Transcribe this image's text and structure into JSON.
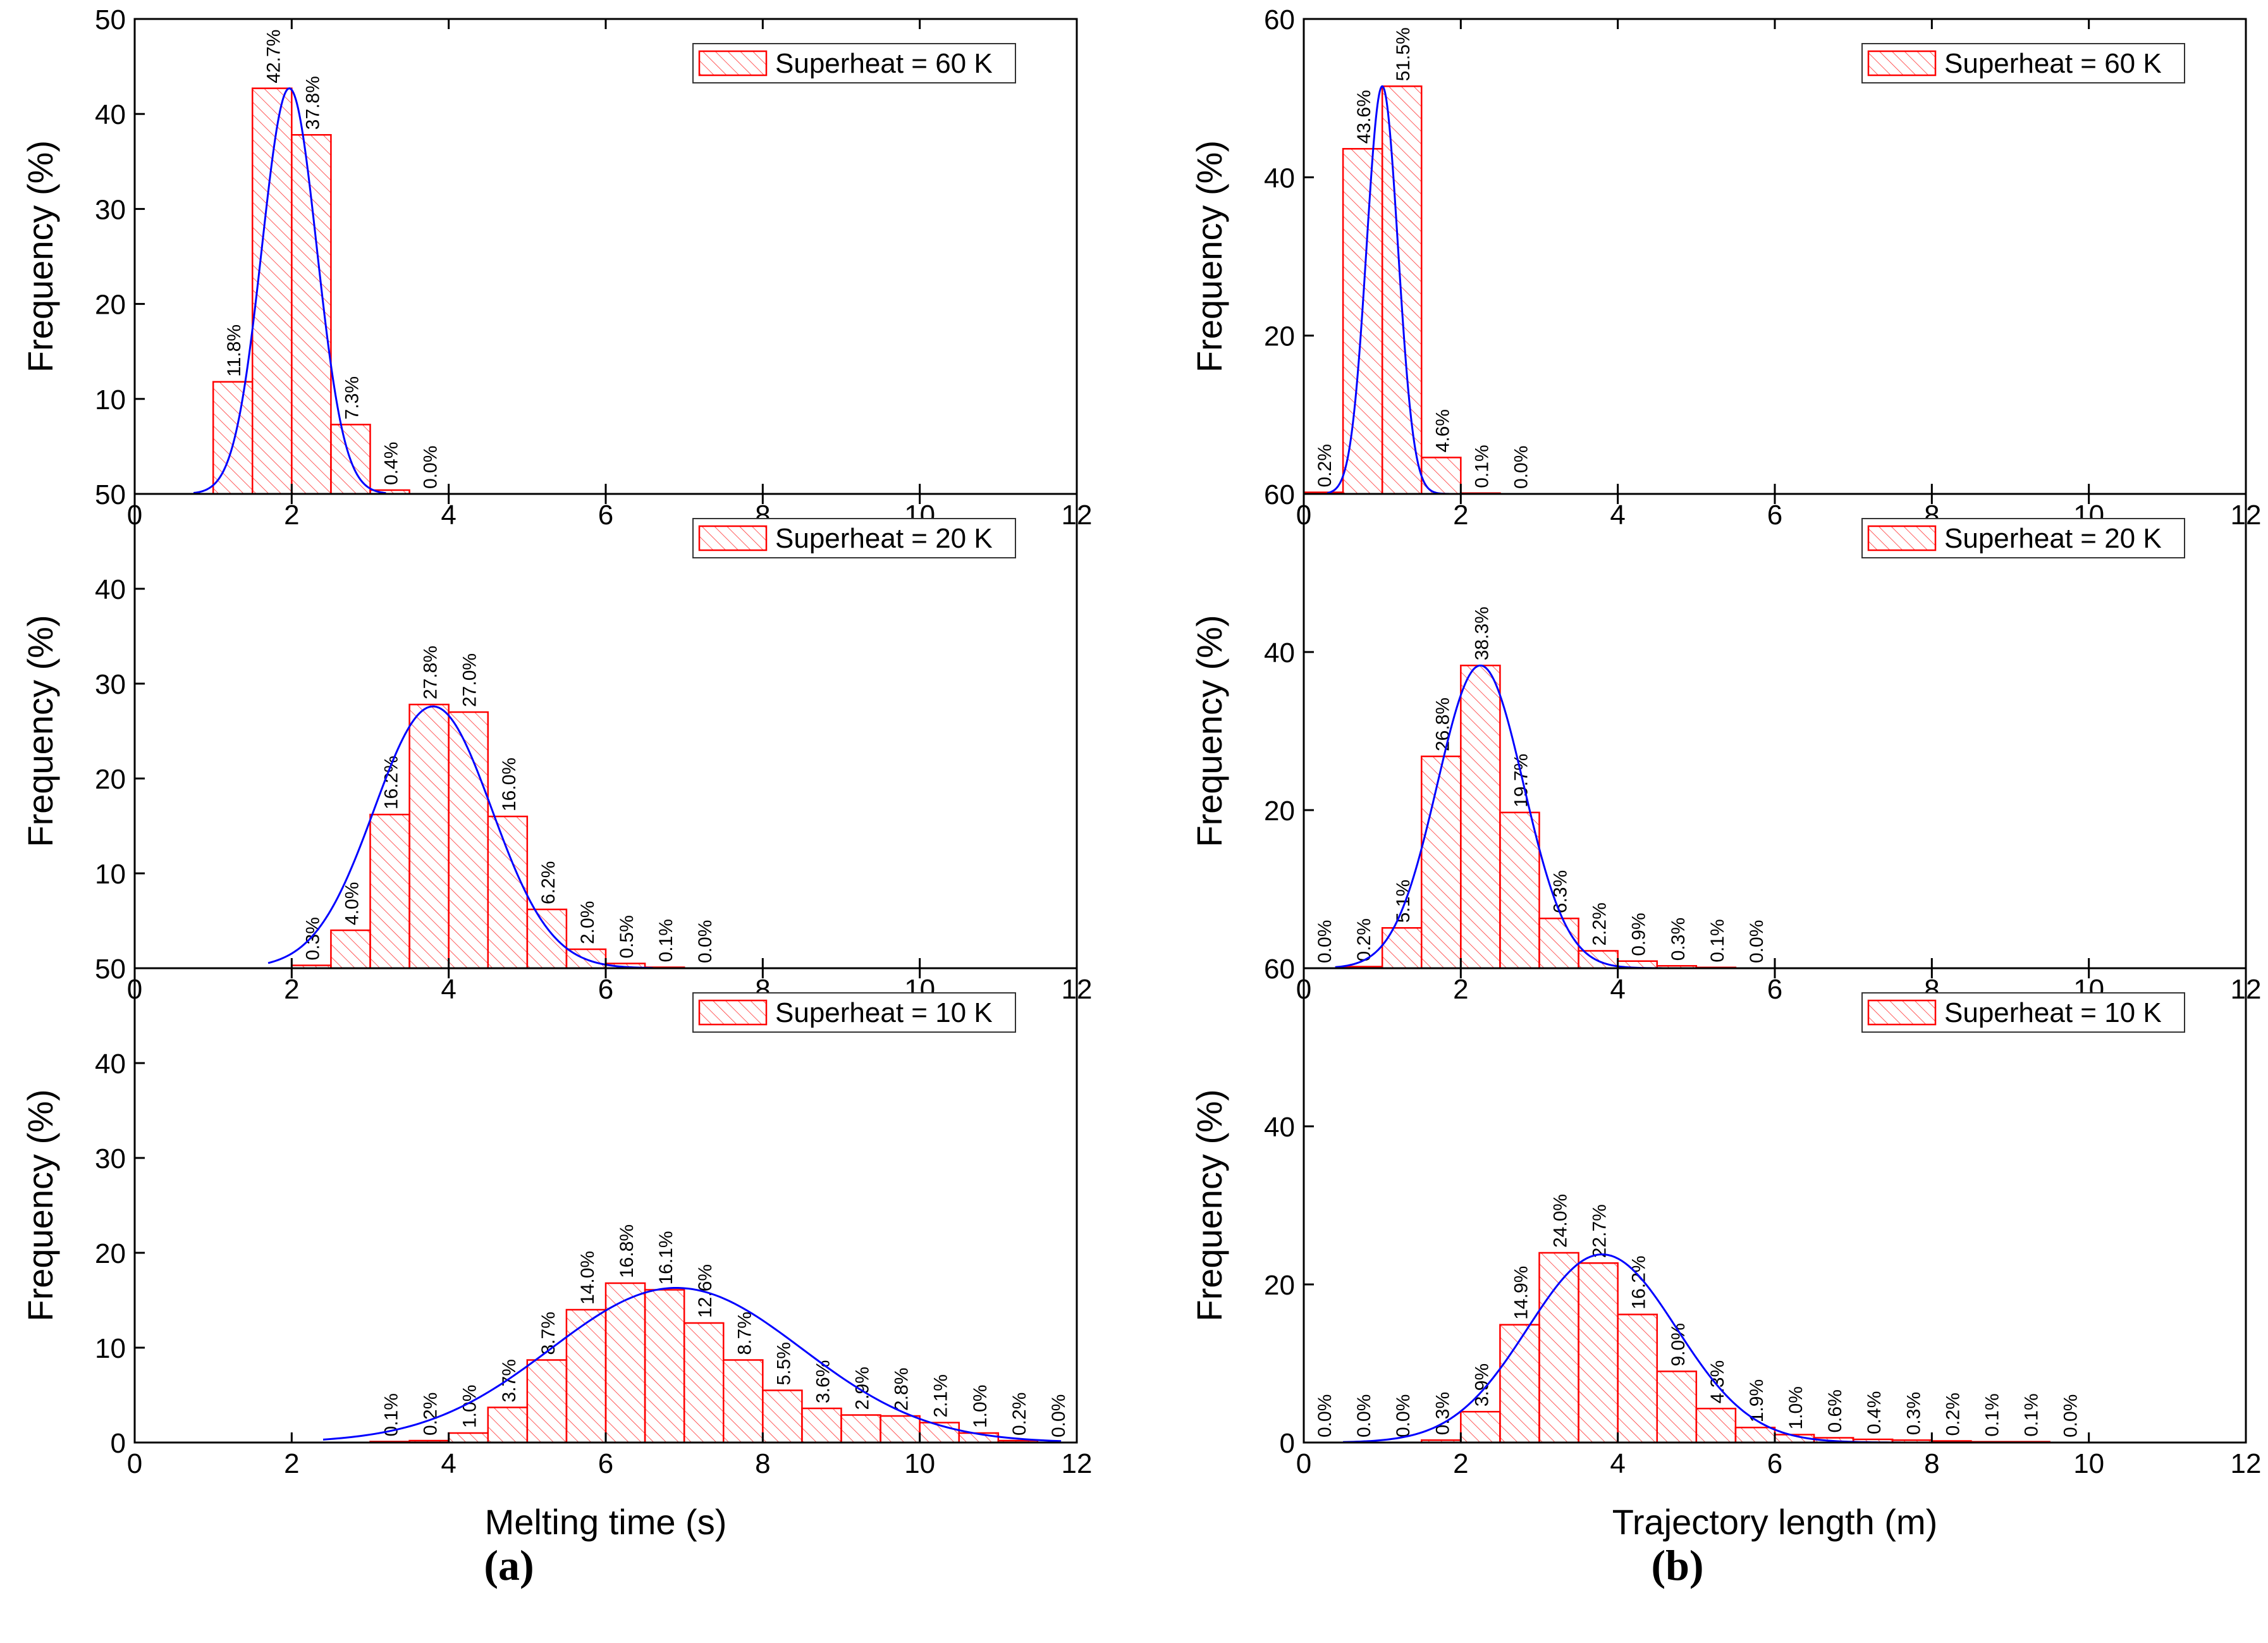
{
  "colors": {
    "bar": "#ff0000",
    "curve": "#0000ff",
    "axis": "#000000"
  },
  "captions": {
    "a": "(a)",
    "b": "(b)"
  },
  "chart_data": [
    {
      "id": "a-top",
      "type": "bar",
      "panel": "a",
      "legend": "Superheat = 60 K",
      "legend_position": "top-right",
      "xlabel": "",
      "ylabel": "Frequency (%)",
      "xlim": [
        0,
        12
      ],
      "ylim": [
        0,
        50
      ],
      "yticks": [
        0,
        10,
        20,
        30,
        40,
        50
      ],
      "yticklabels": [
        "50",
        "10",
        "20",
        "30",
        "40",
        "50"
      ],
      "xticks": [
        0,
        2,
        4,
        6,
        8,
        10,
        12
      ],
      "xticklabels": [
        "0",
        "2",
        "4",
        "6",
        "8",
        "10",
        "12"
      ],
      "bin_start": 1.0,
      "bin_width": 0.5,
      "values": [
        11.8,
        42.7,
        37.8,
        7.3,
        0.4,
        0.0
      ],
      "labels": [
        "11.8%",
        "42.7%",
        "37.8%",
        "7.3%",
        "0.4%",
        "0.0%"
      ],
      "fit": {
        "mean": 1.97,
        "sd": 0.35,
        "peak": 42.7,
        "from": 0.75,
        "to": 3.2
      }
    },
    {
      "id": "a-mid",
      "type": "bar",
      "panel": "a",
      "legend": "Superheat = 20 K",
      "legend_position": "top-right",
      "xlabel": "",
      "ylabel": "Frequency (%)",
      "xlim": [
        0,
        12
      ],
      "ylim": [
        0,
        50
      ],
      "yticks": [
        0,
        10,
        20,
        30,
        40
      ],
      "yticklabels": [
        "50",
        "10",
        "20",
        "30",
        "40"
      ],
      "xticks": [
        0,
        2,
        4,
        6,
        8,
        10,
        12
      ],
      "xticklabels": [
        "0",
        "2",
        "4",
        "6",
        "8",
        "10",
        "12"
      ],
      "bin_start": 2.0,
      "bin_width": 0.5,
      "values": [
        0.3,
        4.0,
        16.2,
        27.8,
        27.0,
        16.0,
        6.2,
        2.0,
        0.5,
        0.1,
        0.0
      ],
      "labels": [
        "0.3%",
        "4.0%",
        "16.2%",
        "27.8%",
        "27.0%",
        "16.0%",
        "6.2%",
        "2.0%",
        "0.5%",
        "0.1%",
        "0.0%"
      ],
      "fit": {
        "mean": 3.8,
        "sd": 0.75,
        "peak": 27.6,
        "from": 1.7,
        "to": 6.6
      }
    },
    {
      "id": "a-bot",
      "type": "bar",
      "panel": "a",
      "legend": "Superheat = 10 K",
      "legend_position": "top-right",
      "xlabel": "Melting time (s)",
      "ylabel": "Frequency (%)",
      "xlim": [
        0,
        12
      ],
      "ylim": [
        0,
        50
      ],
      "yticks": [
        0,
        10,
        20,
        30,
        40
      ],
      "yticklabels": [
        "0",
        "10",
        "20",
        "30",
        "40"
      ],
      "xticks": [
        0,
        2,
        4,
        6,
        8,
        10,
        12
      ],
      "xticklabels": [
        "0",
        "2",
        "4",
        "6",
        "8",
        "10",
        "12"
      ],
      "bin_start": 3.0,
      "bin_width": 0.5,
      "values": [
        0.1,
        0.2,
        1.0,
        3.7,
        8.7,
        14.0,
        16.8,
        16.1,
        12.6,
        8.7,
        5.5,
        3.6,
        2.9,
        2.8,
        2.1,
        1.0,
        0.2,
        0.0
      ],
      "labels": [
        "0.1%",
        "0.2%",
        "1.0%",
        "3.7%",
        "8.7%",
        "14.0%",
        "16.8%",
        "16.1%",
        "12.6%",
        "8.7%",
        "5.5%",
        "3.6%",
        "2.9%",
        "2.8%",
        "2.1%",
        "1.0%",
        "0.2%",
        "0.0%"
      ],
      "fit": {
        "mean": 6.9,
        "sd": 1.6,
        "peak": 16.3,
        "from": 2.4,
        "to": 11.8
      }
    },
    {
      "id": "b-top",
      "type": "bar",
      "panel": "b",
      "legend": "Superheat = 60 K",
      "legend_position": "top-right",
      "xlabel": "",
      "ylabel": "Frequency (%)",
      "xlim": [
        0,
        12
      ],
      "ylim": [
        0,
        60
      ],
      "yticks": [
        0,
        20,
        40,
        60
      ],
      "yticklabels": [
        "60",
        "20",
        "40",
        "60"
      ],
      "xticks": [
        0,
        2,
        4,
        6,
        8,
        10,
        12
      ],
      "xticklabels": [
        "0",
        "2",
        "4",
        "6",
        "8",
        "10",
        "12"
      ],
      "bin_start": 0.0,
      "bin_width": 0.5,
      "values": [
        0.2,
        43.6,
        51.5,
        4.6,
        0.1,
        0.0
      ],
      "labels": [
        "0.2%",
        "43.6%",
        "51.5%",
        "4.6%",
        "0.1%",
        "0.0%"
      ],
      "fit": {
        "mean": 1.0,
        "sd": 0.2,
        "peak": 51.5,
        "from": 0.3,
        "to": 1.85
      }
    },
    {
      "id": "b-mid",
      "type": "bar",
      "panel": "b",
      "legend": "Superheat = 20 K",
      "legend_position": "top-right",
      "xlabel": "",
      "ylabel": "Frequency (%)",
      "xlim": [
        0,
        12
      ],
      "ylim": [
        0,
        60
      ],
      "yticks": [
        0,
        20,
        40
      ],
      "yticklabels": [
        "60",
        "20",
        "40"
      ],
      "xticks": [
        0,
        2,
        4,
        6,
        8,
        10,
        12
      ],
      "xticklabels": [
        "0",
        "2",
        "4",
        "6",
        "8",
        "10",
        "12"
      ],
      "bin_start": 0.0,
      "bin_width": 0.5,
      "values": [
        0.0,
        0.2,
        5.1,
        26.8,
        38.3,
        19.7,
        6.3,
        2.2,
        0.9,
        0.3,
        0.1,
        0.0
      ],
      "labels": [
        "0.0%",
        "0.2%",
        "5.1%",
        "26.8%",
        "38.3%",
        "19.7%",
        "6.3%",
        "2.2%",
        "0.9%",
        "0.3%",
        "0.1%",
        "0.0%"
      ],
      "fit": {
        "mean": 2.25,
        "sd": 0.55,
        "peak": 38.3,
        "from": 0.4,
        "to": 4.6
      }
    },
    {
      "id": "b-bot",
      "type": "bar",
      "panel": "b",
      "legend": "Superheat = 10 K",
      "legend_position": "top-right",
      "xlabel": "Trajectory length (m)",
      "ylabel": "Frequency (%)",
      "xlim": [
        0,
        12
      ],
      "ylim": [
        0,
        60
      ],
      "yticks": [
        0,
        20,
        40
      ],
      "yticklabels": [
        "0",
        "20",
        "40"
      ],
      "xticks": [
        0,
        2,
        4,
        6,
        8,
        10,
        12
      ],
      "xticklabels": [
        "0",
        "2",
        "4",
        "6",
        "8",
        "10",
        "12"
      ],
      "bin_start": 0.0,
      "bin_width": 0.5,
      "values": [
        0.0,
        0.0,
        0.0,
        0.3,
        3.9,
        14.9,
        24.0,
        22.7,
        16.2,
        9.0,
        4.3,
        1.9,
        1.0,
        0.6,
        0.4,
        0.3,
        0.2,
        0.1,
        0.1,
        0.0
      ],
      "labels": [
        "0.0%",
        "0.0%",
        "0.0%",
        "0.3%",
        "3.9%",
        "14.9%",
        "24.0%",
        "22.7%",
        "16.2%",
        "9.0%",
        "4.3%",
        "1.9%",
        "1.0%",
        "0.6%",
        "0.4%",
        "0.3%",
        "0.2%",
        "0.1%",
        "0.1%",
        "0.0%"
      ],
      "fit": {
        "mean": 3.8,
        "sd": 0.95,
        "peak": 23.8,
        "from": 0.5,
        "to": 7.6
      }
    }
  ]
}
